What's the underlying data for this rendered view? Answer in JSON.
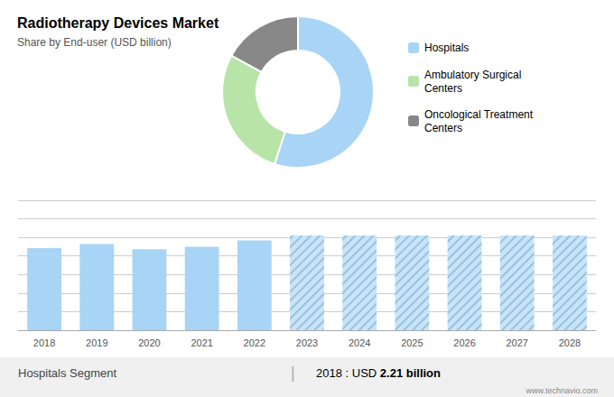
{
  "chart_data": [
    {
      "type": "donut",
      "title": "Radiotherapy Devices Market",
      "subtitle": "Share by End-user (USD billion)",
      "categories": [
        "Hospitals",
        "Ambulatory Surgical\nCenters",
        "Oncological Treatment\nCenters"
      ],
      "values": [
        55,
        28,
        17
      ],
      "colors": [
        "#a8d4f5",
        "#b8e4a8",
        "#888888"
      ],
      "legend": "right"
    },
    {
      "type": "bar",
      "categories": [
        "2018",
        "2019",
        "2020",
        "2021",
        "2022",
        "2023",
        "2024",
        "2025",
        "2026",
        "2027",
        "2028"
      ],
      "series": [
        {
          "color": "#a8d4f5",
          "values": [
            2.21,
            2.32,
            2.18,
            2.25,
            2.42,
            null,
            null,
            null,
            null,
            null,
            null
          ]
        },
        {
          "color": "#c8e4f8",
          "values": [
            null,
            null,
            null,
            null,
            null,
            2.55,
            2.55,
            2.55,
            2.55,
            2.55,
            2.55
          ]
        }
      ],
      "ylim": [
        0,
        3.5
      ],
      "yticks": [
        0,
        0.5,
        1,
        1.5,
        2,
        2.5,
        3,
        3.5
      ],
      "grid": true,
      "tick_labels": "x",
      "annotations": [
        "Hospitals Segment",
        "|",
        "2018 : USD ",
        "2.21 billion",
        "www.technavio.com"
      ]
    }
  ]
}
